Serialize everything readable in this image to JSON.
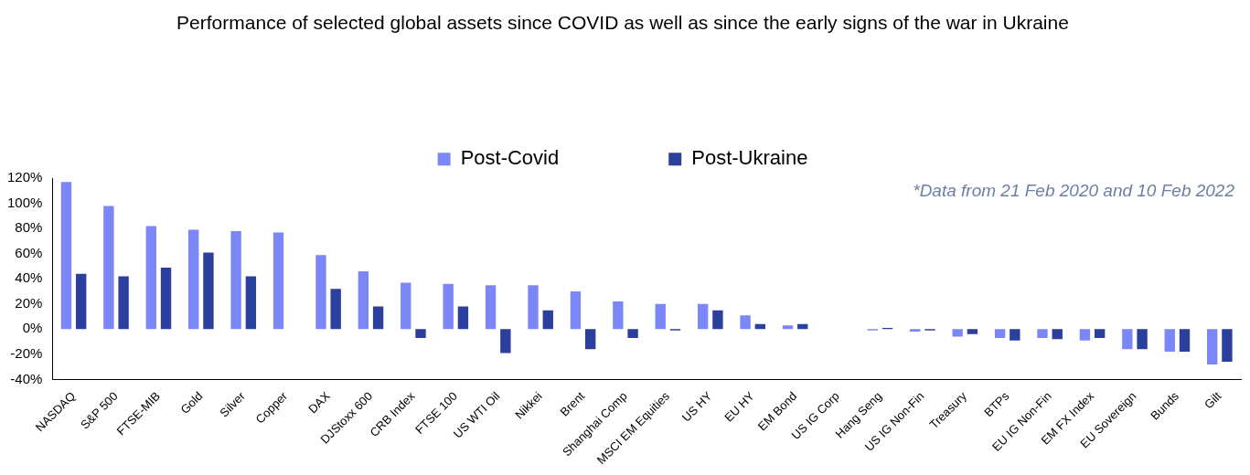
{
  "chart_data": {
    "type": "bar",
    "title": "Performance of selected global assets since COVID as well as since the early signs of the war in Ukraine",
    "categories": [
      "NASDAQ",
      "S&P 500",
      "FTSE-MIB",
      "Gold",
      "Silver",
      "Copper",
      "DAX",
      "DJStoxx 600",
      "CRB Index",
      "FTSE 100",
      "US WTI Oil",
      "Nikkei",
      "Brent",
      "Shanghai Comp",
      "MSCI EM Equities",
      "US HY",
      "EU HY",
      "EM Bond",
      "US IG Corp",
      "Hang Seng",
      "US IG Non-Fin",
      "Treasury",
      "BTPs",
      "EU IG Non-Fin",
      "EM FX Index",
      "EU Sovereign",
      "Bunds",
      "Gilt"
    ],
    "series": [
      {
        "name": "Post-Covid",
        "color": "#7b87f7",
        "values": [
          117,
          98,
          82,
          79,
          78,
          77,
          59,
          46,
          37,
          36,
          35,
          35,
          30,
          22,
          20,
          20,
          11,
          3,
          null,
          -1,
          -2,
          -6,
          -7,
          -7,
          -9,
          -16,
          -18,
          -28
        ]
      },
      {
        "name": "Post-Ukraine",
        "color": "#2b3f9c",
        "values": [
          44,
          42,
          49,
          61,
          42,
          0,
          32,
          18,
          -7,
          18,
          -19,
          15,
          -16,
          -7,
          -1,
          15,
          4,
          4,
          null,
          1,
          -1,
          -4,
          -9,
          -8,
          -7,
          -16,
          -18,
          -26
        ]
      }
    ],
    "ylim": [
      -40,
      120
    ],
    "yticks": [
      {
        "value": -40,
        "label": "-40%"
      },
      {
        "value": -20,
        "label": "-20%"
      },
      {
        "value": 0,
        "label": "0%"
      },
      {
        "value": 20,
        "label": "20%"
      },
      {
        "value": 40,
        "label": "40%"
      },
      {
        "value": 60,
        "label": "60%"
      },
      {
        "value": 80,
        "label": "80%"
      },
      {
        "value": 100,
        "label": "100%"
      },
      {
        "value": 120,
        "label": "120%"
      }
    ],
    "grid": false,
    "legend": "top",
    "annotations": [
      "*Data from 21 Feb 2020 and 10 Feb 2022"
    ]
  }
}
